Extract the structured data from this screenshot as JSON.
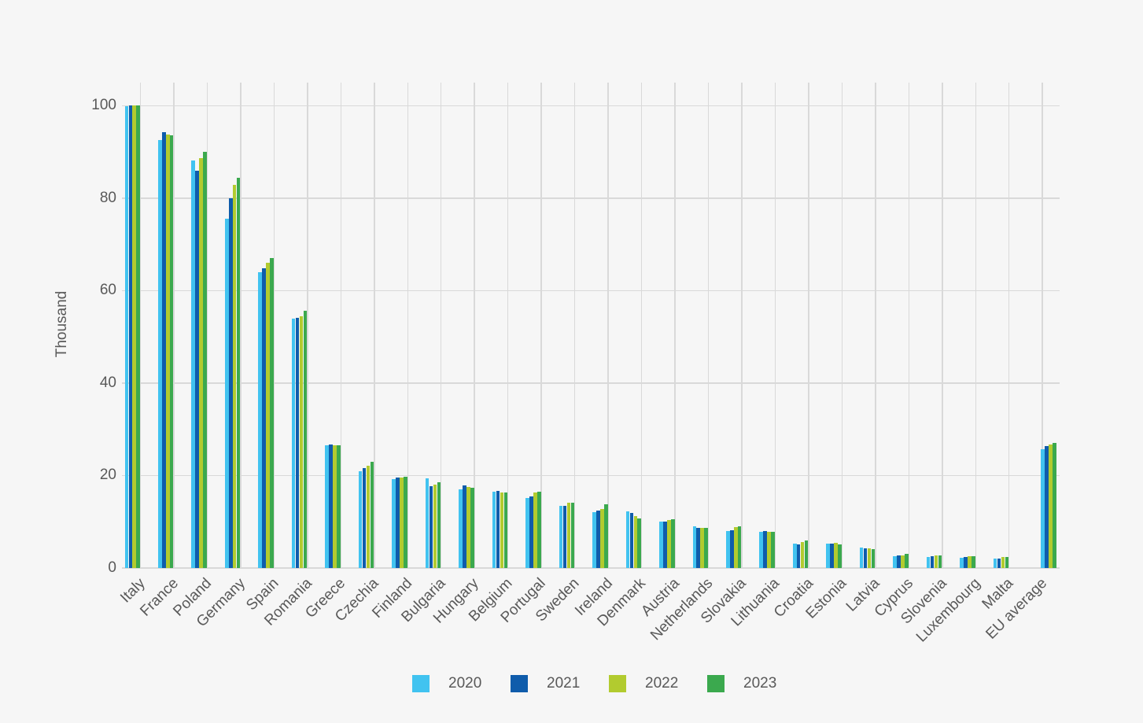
{
  "chart_data": {
    "type": "bar",
    "ylabel": "Thousand",
    "ylim": [
      0,
      100
    ],
    "yticks": [
      0,
      20,
      40,
      60,
      80,
      100
    ],
    "grid": true,
    "legend_position": "bottom",
    "categories": [
      "Italy",
      "France",
      "Poland",
      "Germany",
      "Spain",
      "Romania",
      "Greece",
      "Czechia",
      "Finland",
      "Bulgaria",
      "Hungary",
      "Belgium",
      "Portugal",
      "Sweden",
      "Ireland",
      "Denmark",
      "Austria",
      "Netherlands",
      "Slovakia",
      "Lithuania",
      "Croatia",
      "Estonia",
      "Latvia",
      "Cyprus",
      "Slovenia",
      "Luxembourg",
      "Malta",
      "EU average"
    ],
    "series": [
      {
        "name": "2020",
        "color": "#41c3f0",
        "values": [
          99.8,
          92.6,
          88.2,
          75.5,
          63.9,
          53.9,
          26.6,
          21.0,
          19.2,
          19.4,
          17.0,
          16.5,
          15.2,
          13.4,
          12.0,
          12.2,
          10.0,
          9.0,
          8.0,
          7.9,
          5.2,
          5.3,
          4.4,
          2.5,
          2.3,
          2.2,
          2.1,
          25.7
        ]
      },
      {
        "name": "2021",
        "color": "#0f5cab",
        "values": [
          100,
          94.2,
          86.0,
          80.0,
          64.9,
          54.1,
          26.7,
          21.6,
          19.5,
          17.7,
          17.8,
          16.7,
          15.4,
          13.5,
          12.4,
          11.9,
          10.0,
          8.7,
          8.2,
          8.0,
          5.1,
          5.3,
          4.2,
          2.7,
          2.6,
          2.4,
          2.1,
          26.3
        ]
      },
      {
        "name": "2022",
        "color": "#b2cb2f",
        "values": [
          100,
          93.8,
          88.6,
          82.8,
          66.0,
          54.4,
          26.6,
          22.1,
          19.5,
          18.1,
          17.5,
          16.4,
          16.3,
          14.1,
          12.8,
          11.3,
          10.3,
          8.7,
          8.8,
          7.9,
          5.7,
          5.4,
          4.3,
          2.8,
          2.7,
          2.5,
          2.4,
          26.7
        ]
      },
      {
        "name": "2023",
        "color": "#3ba94e",
        "values": [
          100,
          93.6,
          90.0,
          84.4,
          67.1,
          55.6,
          26.6,
          23.0,
          19.7,
          18.5,
          17.3,
          16.4,
          16.5,
          14.2,
          13.8,
          10.7,
          10.6,
          8.7,
          9.0,
          7.9,
          6.0,
          5.1,
          4.1,
          3.1,
          2.8,
          2.5,
          2.4,
          27.0
        ]
      }
    ],
    "hatched_categories": [
      "EU average"
    ],
    "hatch_color": "#55555f"
  }
}
